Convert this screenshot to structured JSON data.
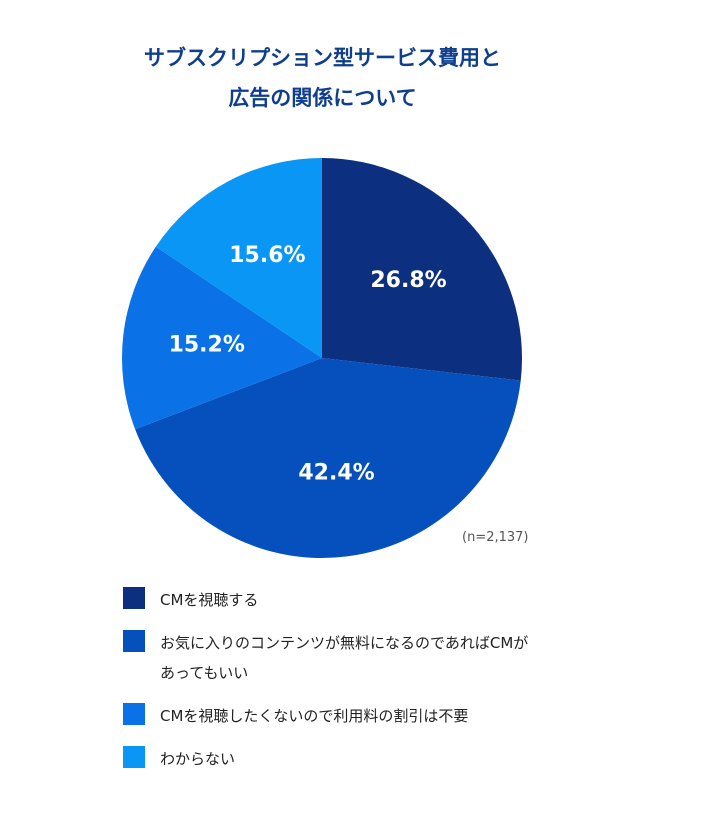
{
  "title": [
    "サブスクリプション型サービス費用と",
    "広告の関係について"
  ],
  "note": "(n=2,137)",
  "chart_data": {
    "type": "pie",
    "title": "サブスクリプション型サービス費用と広告の関係について",
    "categories": [
      "CMを視聴する",
      "お気に入りのコンテンツが無料になるのであればCMがあってもいい",
      "CMを視聴したくないので利用料の割引は不要",
      "わからない"
    ],
    "values": [
      26.8,
      42.4,
      15.2,
      15.6
    ],
    "labels": [
      "26.8%",
      "42.4%",
      "15.2%",
      "15.6%"
    ],
    "colors": [
      "#0c2f80",
      "#0550bd",
      "#0a72e6",
      "#0a96f5"
    ],
    "legend_position": "bottom",
    "start_angle": "top, clockwise"
  },
  "legend": [
    {
      "label": "CMを視聴する",
      "color": "#0c2f80"
    },
    {
      "label": "お気に入りのコンテンツが無料になるのであればCMがあってもいい",
      "color": "#0550bd"
    },
    {
      "label": "CMを視聴したくないので利用料の割引は不要",
      "color": "#0a72e6"
    },
    {
      "label": "わからない",
      "color": "#0a96f5"
    }
  ]
}
